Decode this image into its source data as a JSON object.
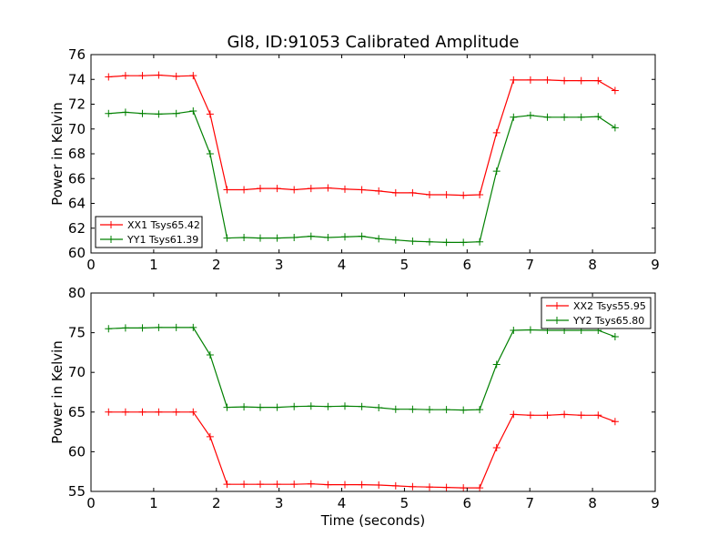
{
  "chart_data": [
    {
      "type": "line",
      "title": "Gl8, ID:91053 Calibrated Amplitude",
      "xlabel": "",
      "ylabel": "Power in Kelvin",
      "xlim": [
        0,
        9
      ],
      "ylim": [
        60,
        76
      ],
      "xticks": [
        "0",
        "1",
        "2",
        "3",
        "4",
        "5",
        "6",
        "7",
        "8",
        "9"
      ],
      "yticks": [
        "60",
        "62",
        "64",
        "66",
        "68",
        "70",
        "72",
        "74",
        "76"
      ],
      "legend_position": "lower-left",
      "x": [
        0.28,
        0.55,
        0.82,
        1.08,
        1.36,
        1.63,
        1.9,
        2.17,
        2.44,
        2.7,
        2.97,
        3.24,
        3.51,
        3.78,
        4.05,
        4.32,
        4.59,
        4.86,
        5.13,
        5.4,
        5.67,
        5.94,
        6.2,
        6.47,
        6.74,
        7.01,
        7.28,
        7.55,
        7.82,
        8.09,
        8.36
      ],
      "series": [
        {
          "name": "XX1 Tsys65.42",
          "color": "#ff0000",
          "values": [
            74.2,
            74.3,
            74.3,
            74.35,
            74.25,
            74.3,
            71.2,
            65.1,
            65.1,
            65.2,
            65.2,
            65.1,
            65.2,
            65.25,
            65.15,
            65.1,
            65.0,
            64.85,
            64.85,
            64.7,
            64.7,
            64.65,
            64.7,
            69.7,
            73.95,
            73.95,
            73.95,
            73.9,
            73.9,
            73.9,
            73.1
          ]
        },
        {
          "name": "YY1 Tsys61.39",
          "color": "#008000",
          "values": [
            71.25,
            71.35,
            71.25,
            71.2,
            71.25,
            71.45,
            68.0,
            61.2,
            61.25,
            61.2,
            61.2,
            61.25,
            61.35,
            61.25,
            61.3,
            61.35,
            61.15,
            61.05,
            60.95,
            60.9,
            60.85,
            60.85,
            60.9,
            66.6,
            70.95,
            71.1,
            70.95,
            70.95,
            70.95,
            71.0,
            70.1
          ]
        }
      ]
    },
    {
      "type": "line",
      "title": "",
      "xlabel": "Time (seconds)",
      "ylabel": "Power in Kelvin",
      "xlim": [
        0,
        9
      ],
      "ylim": [
        55,
        80
      ],
      "xticks": [
        "0",
        "1",
        "2",
        "3",
        "4",
        "5",
        "6",
        "7",
        "8",
        "9"
      ],
      "yticks": [
        "55",
        "60",
        "65",
        "70",
        "75",
        "80"
      ],
      "legend_position": "upper-right",
      "x": [
        0.28,
        0.55,
        0.82,
        1.08,
        1.36,
        1.63,
        1.9,
        2.17,
        2.44,
        2.7,
        2.97,
        3.24,
        3.51,
        3.78,
        4.05,
        4.32,
        4.59,
        4.86,
        5.13,
        5.4,
        5.67,
        5.94,
        6.2,
        6.47,
        6.74,
        7.01,
        7.28,
        7.55,
        7.82,
        8.09,
        8.36
      ],
      "series": [
        {
          "name": "XX2 Tsys55.95",
          "color": "#ff0000",
          "values": [
            65.0,
            65.0,
            65.0,
            65.0,
            65.0,
            65.0,
            61.9,
            55.9,
            55.9,
            55.9,
            55.9,
            55.9,
            55.95,
            55.85,
            55.85,
            55.85,
            55.8,
            55.7,
            55.6,
            55.55,
            55.5,
            55.45,
            55.45,
            60.5,
            64.7,
            64.6,
            64.6,
            64.7,
            64.6,
            64.6,
            63.8
          ]
        },
        {
          "name": "YY2 Tsys65.80",
          "color": "#008000",
          "values": [
            75.5,
            75.6,
            75.6,
            75.65,
            75.65,
            75.65,
            72.2,
            65.6,
            65.65,
            65.6,
            65.6,
            65.7,
            65.75,
            65.7,
            65.75,
            65.7,
            65.55,
            65.35,
            65.35,
            65.3,
            65.3,
            65.25,
            65.3,
            71.0,
            75.3,
            75.35,
            75.3,
            75.3,
            75.3,
            75.3,
            74.5
          ]
        }
      ]
    }
  ]
}
